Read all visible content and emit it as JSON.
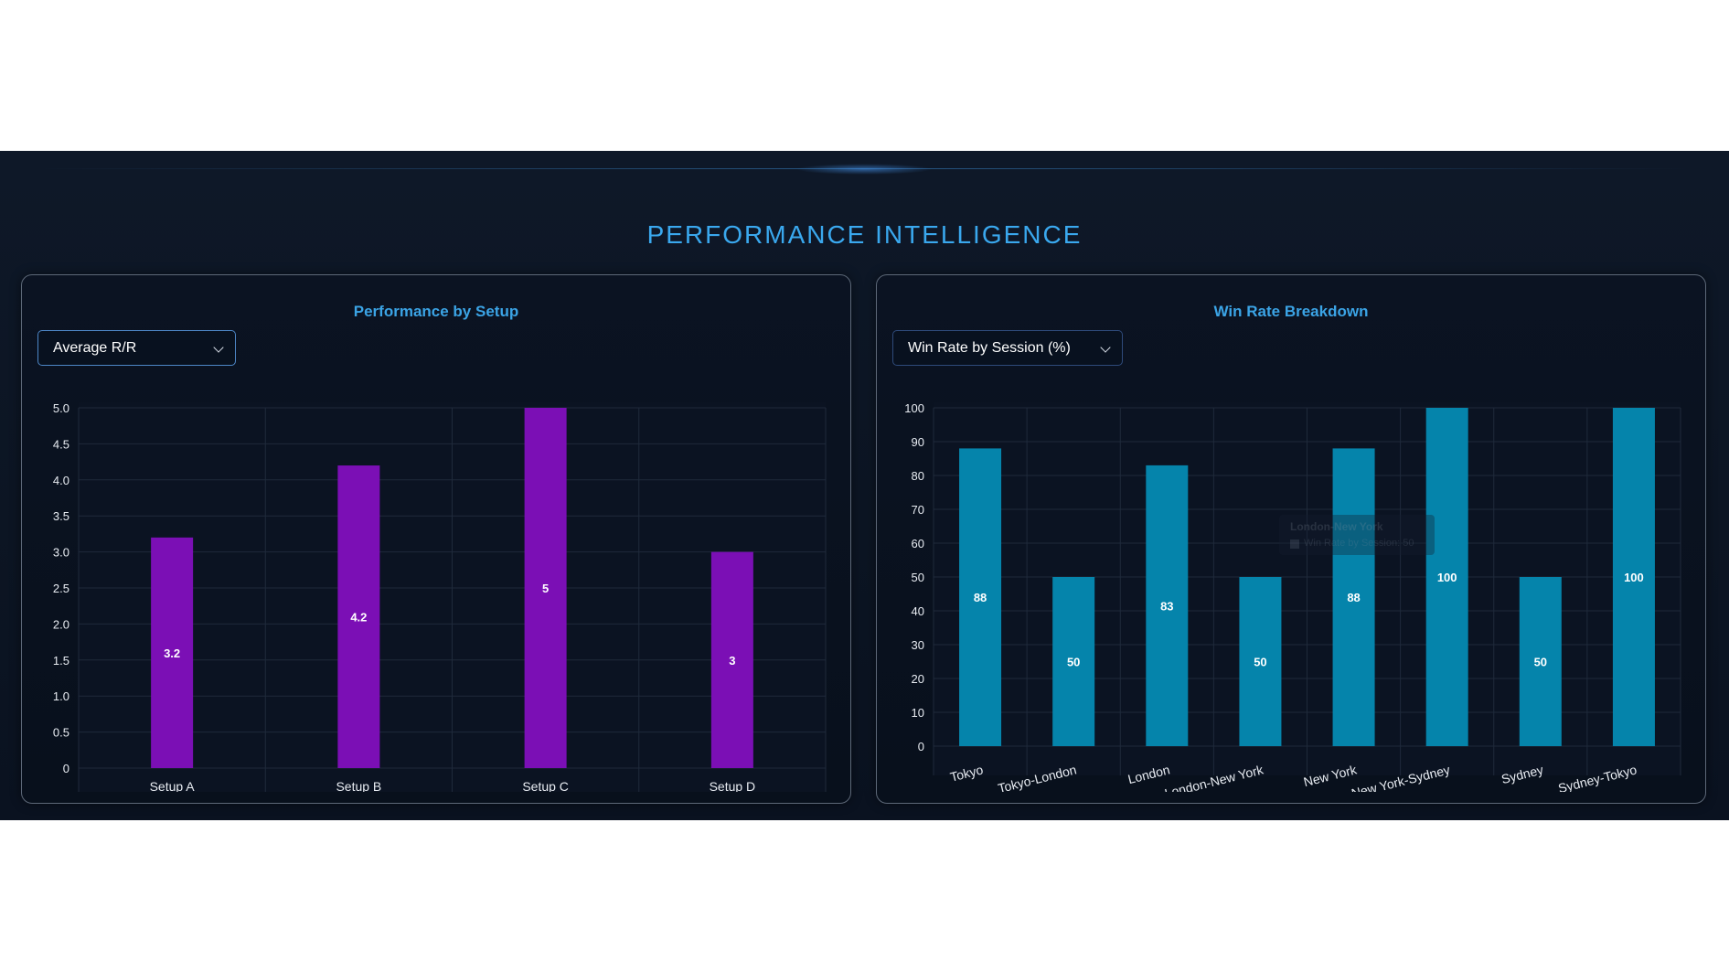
{
  "page": {
    "title": "PERFORMANCE INTELLIGENCE"
  },
  "colors": {
    "accent": "#3aa8ee",
    "setup_bar": "#7b0fb5",
    "session_bar": "#0584ab",
    "background": "#0c1523"
  },
  "left_panel": {
    "title": "Performance by Setup",
    "dropdown": {
      "selected": "Average R/R",
      "icon": "chevron-down-icon"
    }
  },
  "right_panel": {
    "title": "Win Rate Breakdown",
    "dropdown": {
      "selected": "Win Rate by Session (%)",
      "icon": "chevron-down-icon"
    },
    "tooltip": {
      "title": "London-New York",
      "body": "Win Rate by Session: 50"
    }
  },
  "chart_data": [
    {
      "type": "bar",
      "title": "Performance by Setup",
      "categories": [
        "Setup A",
        "Setup B",
        "Setup C",
        "Setup D"
      ],
      "series": [
        {
          "values": [
            3.2,
            4.2,
            5,
            3
          ]
        }
      ],
      "ylim": [
        0,
        5
      ],
      "yticks": [
        "0",
        "0.5",
        "1.0",
        "1.5",
        "2.0",
        "2.5",
        "3.0",
        "3.5",
        "4.0",
        "4.5",
        "5.0"
      ],
      "grid": true,
      "data_labels": true
    },
    {
      "type": "bar",
      "title": "Win Rate Breakdown",
      "categories": [
        "Tokyo",
        "Tokyo-London",
        "London",
        "London-New York",
        "New York",
        "New York-Sydney",
        "Sydney",
        "Sydney-Tokyo"
      ],
      "series": [
        {
          "name": "Win Rate by Session",
          "values": [
            88,
            50,
            83,
            50,
            88,
            100,
            50,
            100
          ]
        }
      ],
      "ylim": [
        0,
        100
      ],
      "yticks": [
        "0",
        "10",
        "20",
        "30",
        "40",
        "50",
        "60",
        "70",
        "80",
        "90",
        "100"
      ],
      "grid": true,
      "data_labels": true
    }
  ]
}
